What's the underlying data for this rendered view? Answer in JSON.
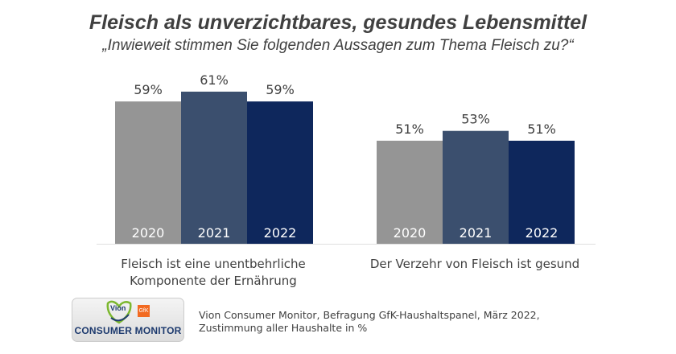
{
  "title": "Fleisch als unverzichtbares, gesundes Lebensmittel",
  "subtitle": "„Inwieweit stimmen Sie folgenden Aussagen zum Thema Fleisch zu?“",
  "chart_data": {
    "type": "bar",
    "categories": [
      "Fleisch ist eine unentbehrliche Komponente der Ernährung",
      "Der Verzehr von Fleisch ist gesund"
    ],
    "category_lines": [
      [
        "Fleisch ist eine unentbehrliche",
        "Komponente der Ernährung"
      ],
      [
        "Der Verzehr von Fleisch ist gesund"
      ]
    ],
    "series": [
      {
        "name": "2020",
        "values": [
          59,
          51
        ],
        "color": "#959595"
      },
      {
        "name": "2021",
        "values": [
          61,
          53
        ],
        "color": "#3b4f6e"
      },
      {
        "name": "2022",
        "values": [
          59,
          51
        ],
        "color": "#0e275c"
      }
    ],
    "value_suffix": "%",
    "ylim": [
      30,
      62
    ],
    "grid": false,
    "legend": "none"
  },
  "footer": {
    "logo": {
      "brand": "Vion",
      "partner": "GfK",
      "name": "CONSUMER MONITOR"
    },
    "source_lines": [
      "Vion Consumer Monitor, Befragung GfK-Haushaltspanel, März 2022,",
      "Zustimmung aller Haushalte in %"
    ]
  }
}
